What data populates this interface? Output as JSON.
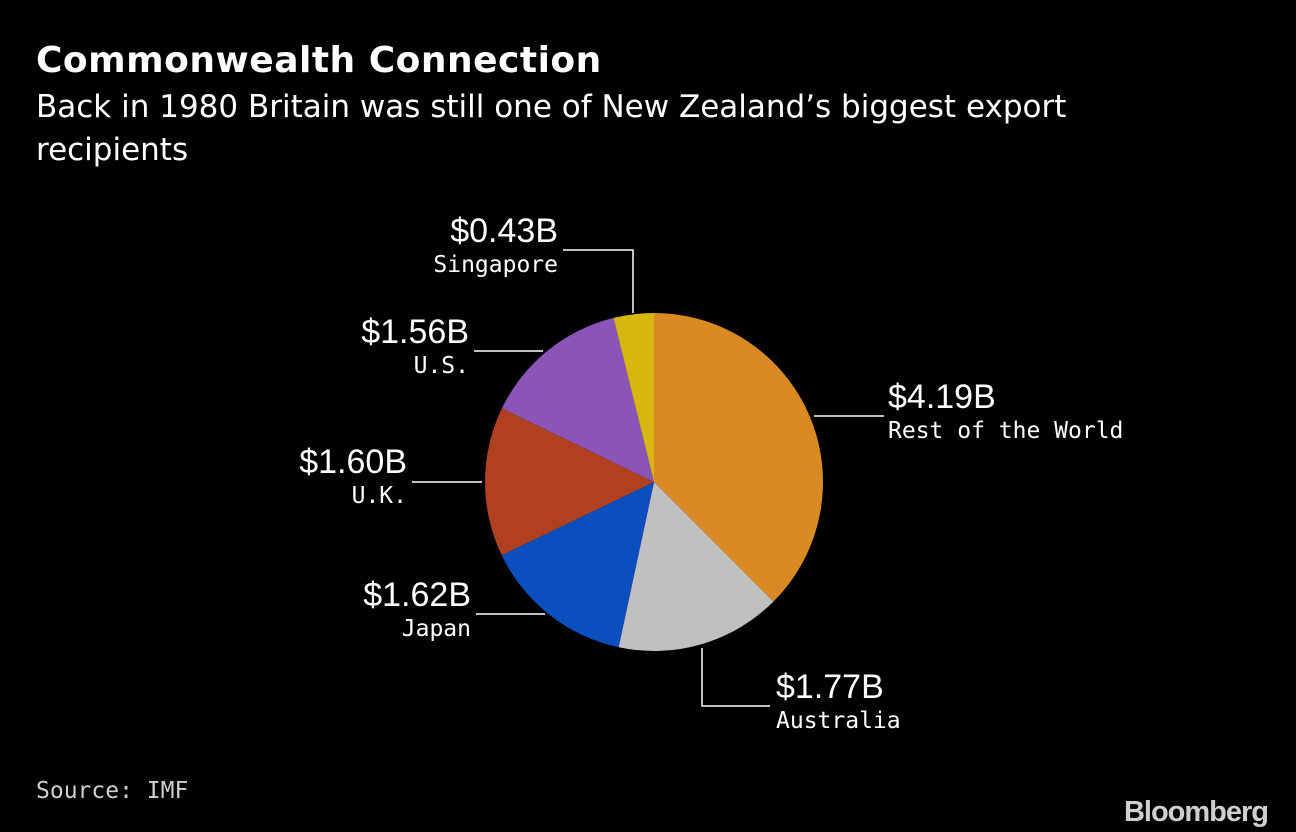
{
  "title": "Commonwealth Connection",
  "subtitle": "Back in 1980 Britain was still one of New Zealand’s biggest export recipients",
  "source": "Source: IMF",
  "brand": "Bloomberg",
  "colors": {
    "background": "#000000",
    "text": "#ffffff",
    "leader": "#ffffff"
  },
  "chart_data": {
    "type": "pie",
    "unit": "$B",
    "start": "12 o'clock",
    "direction": "clockwise",
    "slices": [
      {
        "name": "Rest of the World",
        "value": 4.19,
        "value_label": "$4.19B",
        "color": "#d98a24"
      },
      {
        "name": "Australia",
        "value": 1.77,
        "value_label": "$1.77B",
        "color": "#c0c0c0"
      },
      {
        "name": "Japan",
        "value": 1.62,
        "value_label": "$1.62B",
        "color": "#0b4fbf"
      },
      {
        "name": "U.K.",
        "value": 1.6,
        "value_label": "$1.60B",
        "color": "#b0401f"
      },
      {
        "name": "U.S.",
        "value": 1.56,
        "value_label": "$1.56B",
        "color": "#8b55b8"
      },
      {
        "name": "Singapore",
        "value": 0.43,
        "value_label": "$0.43B",
        "color": "#d7b60f"
      }
    ]
  }
}
